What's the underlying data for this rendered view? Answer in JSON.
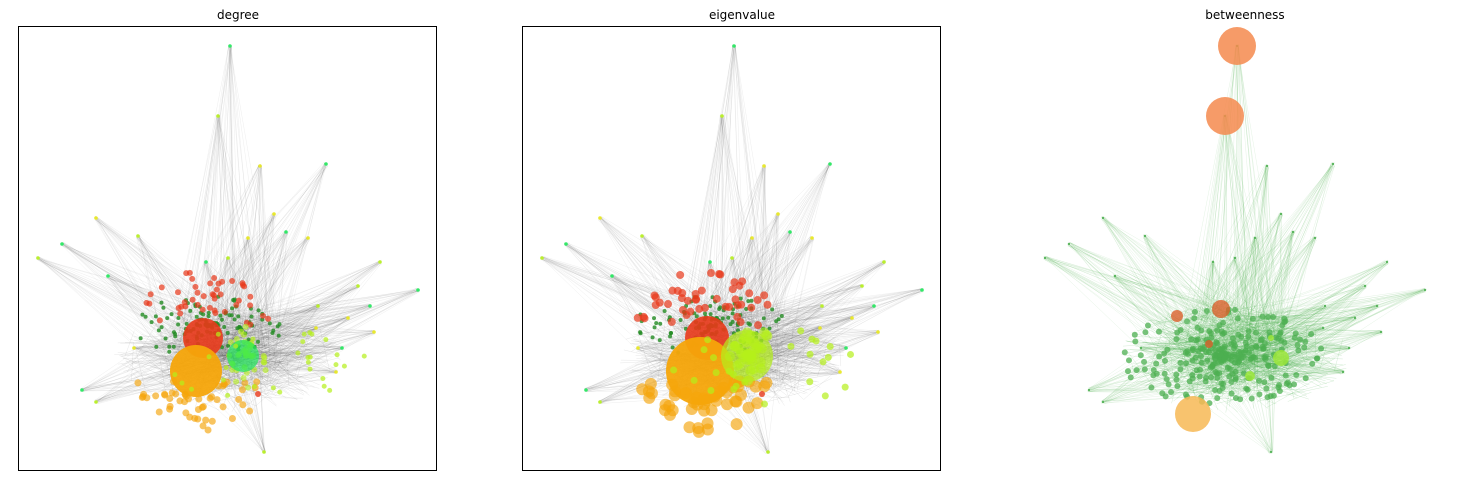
{
  "panels": [
    {
      "title": "degree",
      "framed": true,
      "edge_color": "#555555",
      "mode": "degree"
    },
    {
      "title": "eigenvalue",
      "framed": true,
      "edge_color": "#555555",
      "mode": "eigen"
    },
    {
      "title": "betweenness",
      "framed": false,
      "edge_color": "#4caf50",
      "mode": "between"
    }
  ],
  "colors": {
    "red": "#e8381a",
    "orange": "#f5a50a",
    "green": "#228b22",
    "lime": "#b5f01a",
    "bright_green": "#1fe85a",
    "between_node": "#4caf50",
    "between_big": "#f5894d",
    "between_yellow": "#f7b955"
  }
}
